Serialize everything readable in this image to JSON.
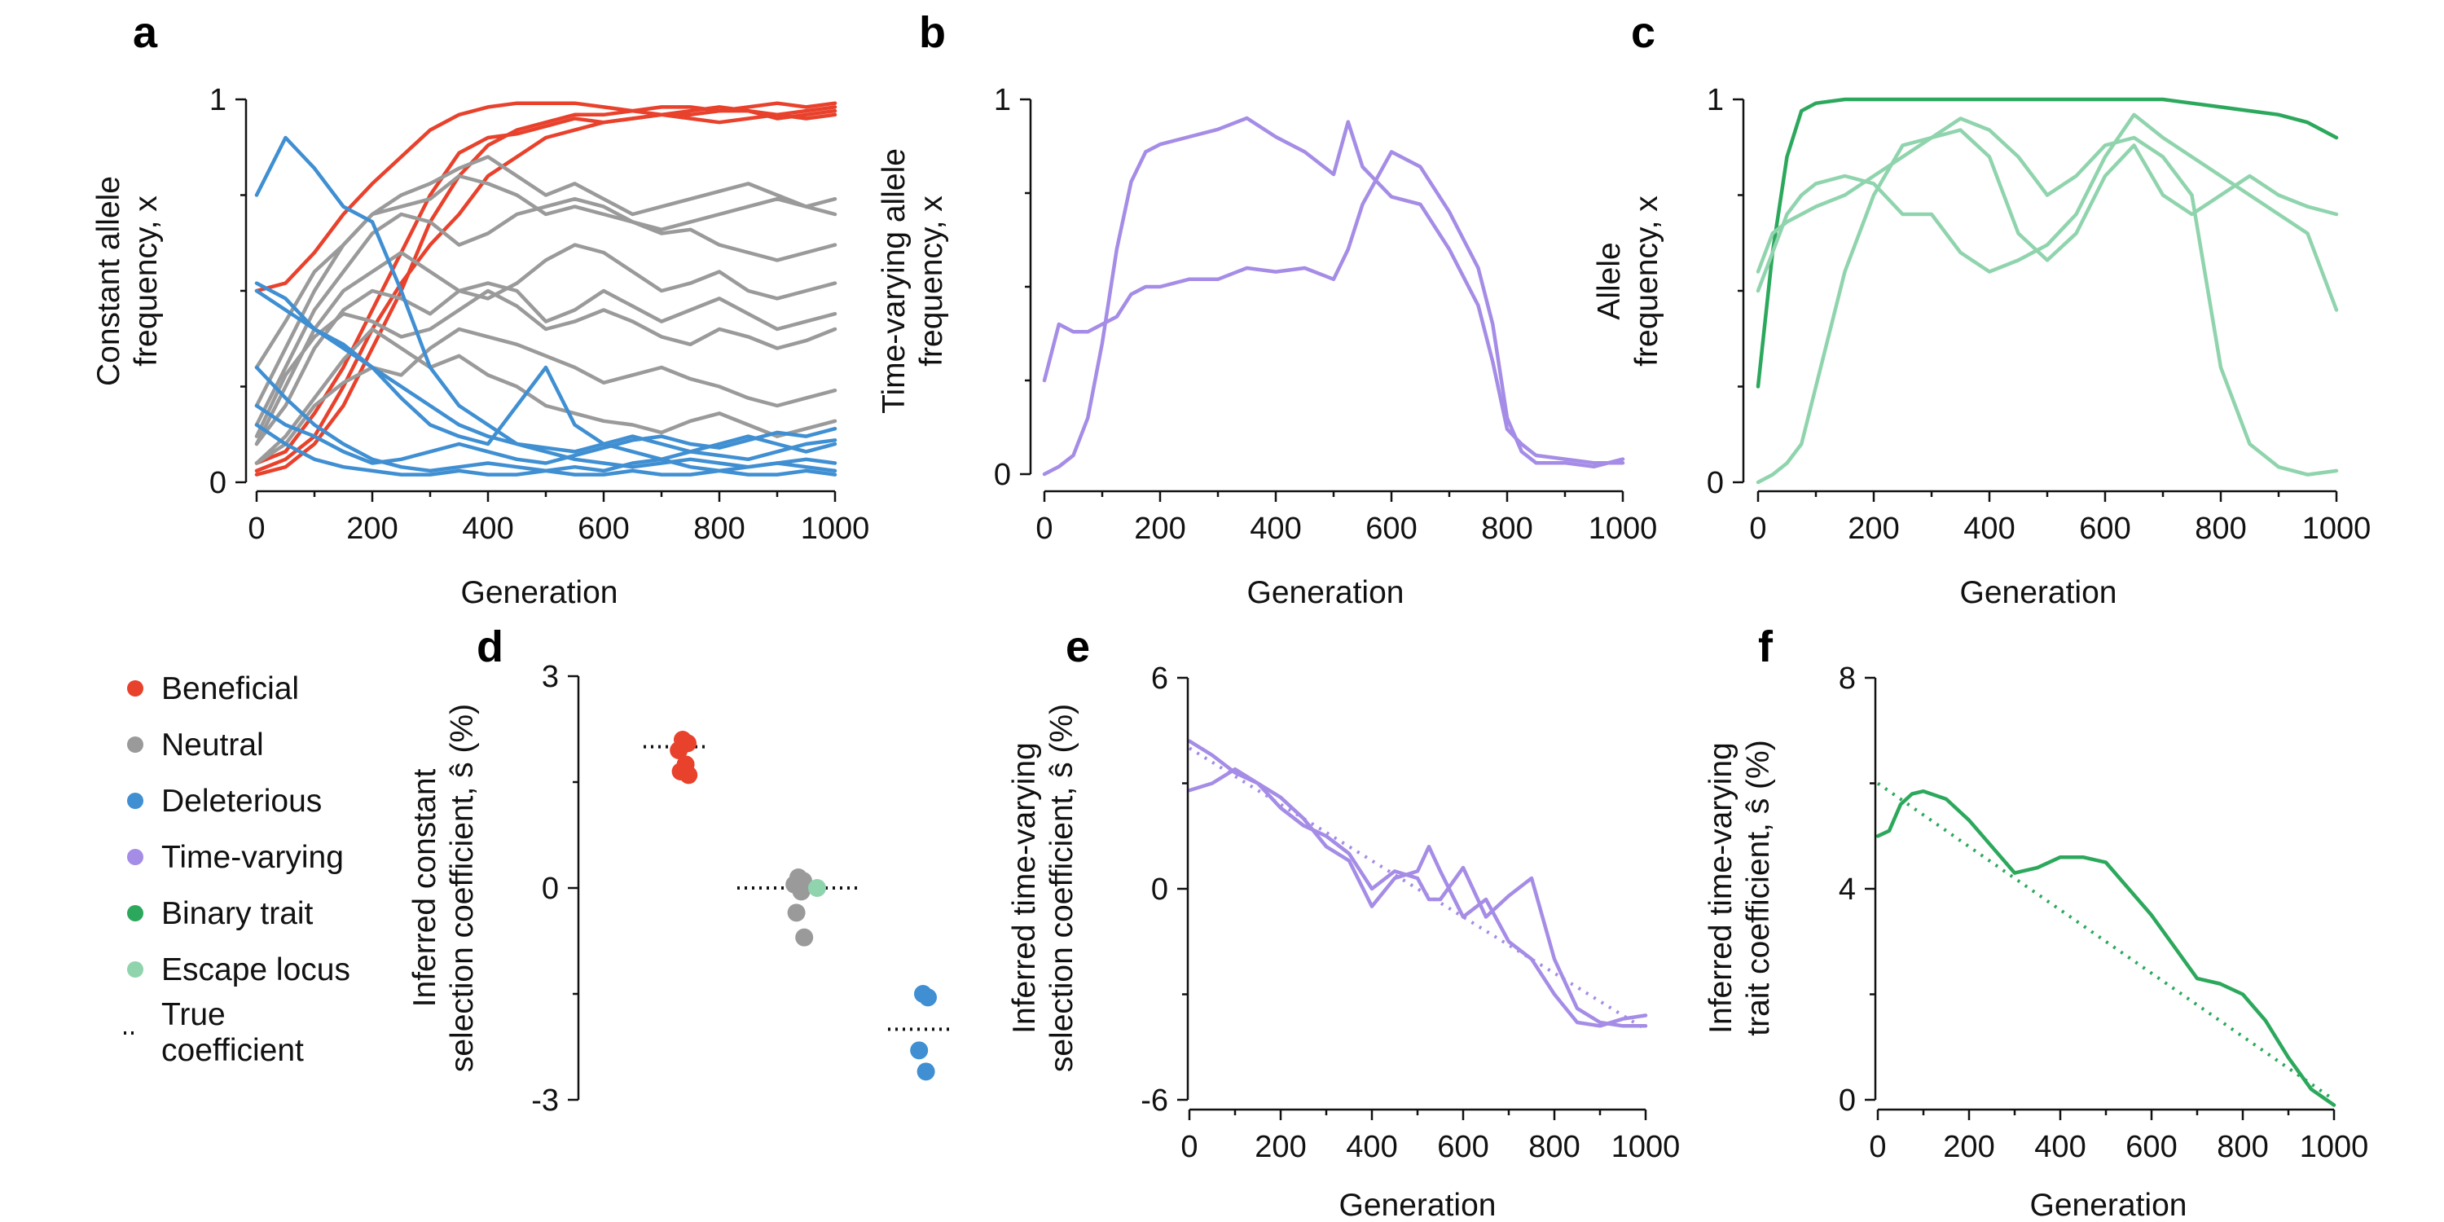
{
  "colors": {
    "beneficial": "#e8412c",
    "neutral": "#9a9a9a",
    "deleterious": "#3f8fd2",
    "time_varying": "#a58ce6",
    "binary_trait": "#2ca85c",
    "escape_locus": "#8fd4ad"
  },
  "legend": {
    "items": [
      {
        "label": "Beneficial",
        "color": "#e8412c",
        "marker": "dot"
      },
      {
        "label": "Neutral",
        "color": "#9a9a9a",
        "marker": "dot"
      },
      {
        "label": "Deleterious",
        "color": "#3f8fd2",
        "marker": "dot"
      },
      {
        "label": "Time-varying",
        "color": "#a58ce6",
        "marker": "dot"
      },
      {
        "label": "Binary trait",
        "color": "#2ca85c",
        "marker": "dot"
      },
      {
        "label": "Escape locus",
        "color": "#8fd4ad",
        "marker": "dot"
      }
    ],
    "true_line1": "True",
    "true_line2": "coefficient"
  },
  "chart_data": [
    {
      "panel": "a",
      "type": "line",
      "ylabel_line1": "Constant allele",
      "ylabel_line2": "frequency, x",
      "xlabel": "Generation",
      "xlim": [
        0,
        1000
      ],
      "ylim": [
        0,
        1
      ],
      "xticks": [
        0,
        200,
        400,
        600,
        800,
        1000
      ],
      "yticks": [
        0,
        1
      ],
      "x": [
        0,
        50,
        100,
        150,
        200,
        250,
        300,
        350,
        400,
        450,
        500,
        550,
        600,
        650,
        700,
        750,
        800,
        850,
        900,
        950,
        1000
      ],
      "series": [
        {
          "group": "beneficial",
          "values": [
            0.5,
            0.52,
            0.6,
            0.7,
            0.78,
            0.85,
            0.92,
            0.96,
            0.98,
            0.99,
            0.99,
            0.99,
            0.98,
            0.97,
            0.96,
            0.97,
            0.98,
            0.97,
            0.95,
            0.96,
            0.97
          ]
        },
        {
          "group": "beneficial",
          "values": [
            0.03,
            0.06,
            0.12,
            0.25,
            0.4,
            0.52,
            0.62,
            0.7,
            0.8,
            0.85,
            0.9,
            0.92,
            0.94,
            0.95,
            0.96,
            0.96,
            0.97,
            0.97,
            0.96,
            0.97,
            0.98
          ]
        },
        {
          "group": "beneficial",
          "values": [
            0.02,
            0.04,
            0.1,
            0.2,
            0.35,
            0.5,
            0.68,
            0.8,
            0.88,
            0.92,
            0.94,
            0.96,
            0.96,
            0.97,
            0.98,
            0.98,
            0.97,
            0.98,
            0.99,
            0.98,
            0.99
          ]
        },
        {
          "group": "beneficial",
          "values": [
            0.05,
            0.08,
            0.18,
            0.3,
            0.45,
            0.6,
            0.75,
            0.86,
            0.9,
            0.91,
            0.93,
            0.95,
            0.94,
            0.95,
            0.96,
            0.95,
            0.94,
            0.95,
            0.96,
            0.95,
            0.96
          ]
        },
        {
          "group": "neutral",
          "values": [
            0.3,
            0.42,
            0.55,
            0.62,
            0.7,
            0.72,
            0.74,
            0.8,
            0.78,
            0.75,
            0.7,
            0.72,
            0.7,
            0.68,
            0.65,
            0.66,
            0.62,
            0.6,
            0.58,
            0.6,
            0.62
          ]
        },
        {
          "group": "neutral",
          "values": [
            0.1,
            0.2,
            0.35,
            0.45,
            0.5,
            0.48,
            0.44,
            0.5,
            0.52,
            0.5,
            0.42,
            0.45,
            0.5,
            0.46,
            0.42,
            0.45,
            0.48,
            0.44,
            0.4,
            0.42,
            0.44
          ]
        },
        {
          "group": "neutral",
          "values": [
            0.05,
            0.1,
            0.2,
            0.26,
            0.3,
            0.28,
            0.35,
            0.4,
            0.38,
            0.36,
            0.33,
            0.3,
            0.26,
            0.28,
            0.3,
            0.27,
            0.25,
            0.22,
            0.2,
            0.22,
            0.24
          ]
        },
        {
          "group": "neutral",
          "values": [
            0.2,
            0.35,
            0.5,
            0.62,
            0.7,
            0.75,
            0.78,
            0.82,
            0.85,
            0.8,
            0.75,
            0.78,
            0.74,
            0.7,
            0.72,
            0.74,
            0.76,
            0.78,
            0.75,
            0.72,
            0.74
          ]
        },
        {
          "group": "neutral",
          "values": [
            0.1,
            0.25,
            0.4,
            0.5,
            0.55,
            0.6,
            0.55,
            0.5,
            0.48,
            0.52,
            0.58,
            0.62,
            0.6,
            0.55,
            0.5,
            0.52,
            0.55,
            0.5,
            0.48,
            0.5,
            0.52
          ]
        },
        {
          "group": "neutral",
          "values": [
            0.05,
            0.12,
            0.22,
            0.32,
            0.4,
            0.35,
            0.3,
            0.33,
            0.28,
            0.25,
            0.2,
            0.18,
            0.16,
            0.15,
            0.13,
            0.16,
            0.18,
            0.15,
            0.12,
            0.14,
            0.16
          ]
        },
        {
          "group": "neutral",
          "values": [
            0.15,
            0.3,
            0.45,
            0.55,
            0.65,
            0.7,
            0.68,
            0.62,
            0.65,
            0.7,
            0.72,
            0.74,
            0.72,
            0.68,
            0.66,
            0.68,
            0.7,
            0.72,
            0.74,
            0.72,
            0.7
          ]
        },
        {
          "group": "neutral",
          "values": [
            0.12,
            0.28,
            0.38,
            0.44,
            0.42,
            0.38,
            0.4,
            0.45,
            0.5,
            0.46,
            0.4,
            0.42,
            0.45,
            0.42,
            0.38,
            0.36,
            0.4,
            0.38,
            0.35,
            0.37,
            0.4
          ]
        },
        {
          "group": "deleterious",
          "values": [
            0.75,
            0.9,
            0.82,
            0.72,
            0.68,
            0.5,
            0.3,
            0.2,
            0.15,
            0.1,
            0.08,
            0.06,
            0.05,
            0.04,
            0.05,
            0.06,
            0.05,
            0.04,
            0.05,
            0.06,
            0.05
          ]
        },
        {
          "group": "deleterious",
          "values": [
            0.5,
            0.45,
            0.4,
            0.35,
            0.3,
            0.22,
            0.15,
            0.12,
            0.1,
            0.2,
            0.3,
            0.15,
            0.1,
            0.08,
            0.06,
            0.08,
            0.1,
            0.12,
            0.1,
            0.08,
            0.1
          ]
        },
        {
          "group": "deleterious",
          "values": [
            0.52,
            0.48,
            0.4,
            0.36,
            0.3,
            0.25,
            0.2,
            0.15,
            0.12,
            0.1,
            0.09,
            0.08,
            0.1,
            0.12,
            0.1,
            0.08,
            0.07,
            0.06,
            0.08,
            0.1,
            0.11
          ]
        },
        {
          "group": "deleterious",
          "values": [
            0.3,
            0.22,
            0.15,
            0.1,
            0.06,
            0.04,
            0.03,
            0.04,
            0.05,
            0.04,
            0.03,
            0.04,
            0.03,
            0.05,
            0.06,
            0.04,
            0.03,
            0.04,
            0.05,
            0.04,
            0.03
          ]
        },
        {
          "group": "deleterious",
          "values": [
            0.2,
            0.15,
            0.12,
            0.08,
            0.05,
            0.06,
            0.08,
            0.1,
            0.08,
            0.06,
            0.05,
            0.07,
            0.09,
            0.11,
            0.12,
            0.1,
            0.09,
            0.11,
            0.13,
            0.12,
            0.14
          ]
        },
        {
          "group": "deleterious",
          "values": [
            0.15,
            0.1,
            0.06,
            0.04,
            0.03,
            0.02,
            0.02,
            0.03,
            0.02,
            0.02,
            0.03,
            0.02,
            0.02,
            0.03,
            0.02,
            0.02,
            0.03,
            0.02,
            0.02,
            0.03,
            0.02
          ]
        }
      ]
    },
    {
      "panel": "b",
      "type": "line",
      "ylabel_line1": "Time-varying allele",
      "ylabel_line2": "frequency, x",
      "xlabel": "Generation",
      "xlim": [
        0,
        1000
      ],
      "ylim": [
        0,
        1
      ],
      "xticks": [
        0,
        200,
        400,
        600,
        800,
        1000
      ],
      "yticks": [
        0,
        1
      ],
      "x": [
        0,
        25,
        50,
        75,
        100,
        125,
        150,
        175,
        200,
        250,
        300,
        350,
        400,
        450,
        500,
        525,
        550,
        600,
        650,
        700,
        750,
        775,
        800,
        825,
        850,
        900,
        950,
        1000
      ],
      "series": [
        {
          "group": "time_varying",
          "values": [
            0.0,
            0.02,
            0.05,
            0.15,
            0.35,
            0.6,
            0.78,
            0.86,
            0.88,
            0.9,
            0.92,
            0.95,
            0.9,
            0.86,
            0.8,
            0.94,
            0.82,
            0.74,
            0.72,
            0.6,
            0.45,
            0.3,
            0.12,
            0.08,
            0.05,
            0.04,
            0.03,
            0.03
          ]
        },
        {
          "group": "time_varying",
          "values": [
            0.25,
            0.4,
            0.38,
            0.38,
            0.4,
            0.42,
            0.48,
            0.5,
            0.5,
            0.52,
            0.52,
            0.55,
            0.54,
            0.55,
            0.52,
            0.6,
            0.72,
            0.86,
            0.82,
            0.7,
            0.55,
            0.4,
            0.15,
            0.06,
            0.03,
            0.03,
            0.02,
            0.04
          ]
        }
      ]
    },
    {
      "panel": "c",
      "type": "line",
      "ylabel_line1": "Allele",
      "ylabel_line2": "frequency, x",
      "xlabel": "Generation",
      "xlim": [
        0,
        1000
      ],
      "ylim": [
        0,
        1
      ],
      "xticks": [
        0,
        200,
        400,
        600,
        800,
        1000
      ],
      "yticks": [
        0,
        1
      ],
      "x": [
        0,
        25,
        50,
        75,
        100,
        150,
        200,
        250,
        300,
        350,
        400,
        450,
        500,
        550,
        600,
        650,
        700,
        750,
        800,
        850,
        900,
        950,
        1000
      ],
      "series": [
        {
          "group": "binary_trait",
          "values": [
            0.25,
            0.6,
            0.85,
            0.97,
            0.99,
            1.0,
            1.0,
            1.0,
            1.0,
            1.0,
            1.0,
            1.0,
            1.0,
            1.0,
            1.0,
            1.0,
            1.0,
            0.99,
            0.98,
            0.97,
            0.96,
            0.94,
            0.9
          ]
        },
        {
          "group": "escape_locus",
          "values": [
            0.0,
            0.02,
            0.05,
            0.1,
            0.25,
            0.55,
            0.75,
            0.88,
            0.9,
            0.95,
            0.92,
            0.85,
            0.75,
            0.8,
            0.88,
            0.9,
            0.85,
            0.75,
            0.3,
            0.1,
            0.04,
            0.02,
            0.03
          ]
        },
        {
          "group": "escape_locus",
          "values": [
            0.5,
            0.6,
            0.7,
            0.75,
            0.78,
            0.8,
            0.78,
            0.7,
            0.7,
            0.6,
            0.55,
            0.58,
            0.62,
            0.7,
            0.85,
            0.96,
            0.9,
            0.85,
            0.8,
            0.75,
            0.7,
            0.65,
            0.45
          ]
        },
        {
          "group": "escape_locus",
          "values": [
            0.55,
            0.65,
            0.68,
            0.7,
            0.72,
            0.75,
            0.8,
            0.85,
            0.9,
            0.92,
            0.85,
            0.65,
            0.58,
            0.65,
            0.8,
            0.88,
            0.75,
            0.7,
            0.75,
            0.8,
            0.75,
            0.72,
            0.7
          ]
        }
      ]
    },
    {
      "panel": "d",
      "type": "scatter",
      "ylabel_line1": "Inferred constant",
      "ylabel_line2": "selection coefficient, ŝ (%)",
      "ylim": [
        -3,
        3
      ],
      "yticks": [
        3,
        0,
        -3
      ],
      "groups": [
        {
          "group": "beneficial",
          "true": 2,
          "values": [
            2.1,
            2.05,
            1.95,
            1.75,
            1.65,
            1.6
          ]
        },
        {
          "group": "neutral",
          "true": 0,
          "values": [
            0.15,
            0.1,
            0.05,
            -0.05,
            -0.35,
            -0.7
          ]
        },
        {
          "group": "escape_locus",
          "true": 0,
          "values": [
            0.0
          ]
        },
        {
          "group": "deleterious",
          "true": -2,
          "values": [
            -1.5,
            -1.55,
            -2.3,
            -2.6
          ]
        }
      ]
    },
    {
      "panel": "e",
      "type": "line",
      "ylabel_line1": "Inferred time-varying",
      "ylabel_line2": "selection coefficient, ŝ (%)",
      "xlabel": "Generation",
      "xlim": [
        0,
        1000
      ],
      "ylim": [
        -6,
        6
      ],
      "xticks": [
        0,
        200,
        400,
        600,
        800,
        1000
      ],
      "yticks": [
        6,
        0,
        -6
      ],
      "x": [
        0,
        50,
        100,
        150,
        200,
        250,
        300,
        350,
        400,
        450,
        500,
        525,
        550,
        600,
        650,
        700,
        750,
        800,
        850,
        900,
        950,
        1000
      ],
      "true_line": {
        "x": [
          0,
          1000
        ],
        "y": [
          4,
          -4
        ]
      },
      "series": [
        {
          "group": "time_varying",
          "values": [
            4.2,
            3.8,
            3.3,
            3.0,
            2.6,
            2.0,
            1.2,
            0.8,
            -0.5,
            0.3,
            0.5,
            1.2,
            0.5,
            -0.8,
            -0.3,
            -1.5,
            -2.0,
            -3.0,
            -3.8,
            -3.9,
            -3.7,
            -3.6
          ]
        },
        {
          "group": "time_varying",
          "values": [
            2.8,
            3.0,
            3.4,
            3.0,
            2.3,
            1.8,
            1.5,
            1.0,
            0.0,
            0.5,
            0.3,
            -0.3,
            -0.3,
            0.6,
            -0.8,
            -0.2,
            0.3,
            -2.0,
            -3.4,
            -3.8,
            -3.9,
            -3.9
          ]
        }
      ]
    },
    {
      "panel": "f",
      "type": "line",
      "ylabel_line1": "Inferred time-varying",
      "ylabel_line2": "trait coefficient, ŝ (%)",
      "xlabel": "Generation",
      "xlim": [
        0,
        1000
      ],
      "ylim": [
        0,
        8
      ],
      "xticks": [
        0,
        200,
        400,
        600,
        800,
        1000
      ],
      "yticks": [
        8,
        4,
        0
      ],
      "x": [
        0,
        25,
        50,
        75,
        100,
        150,
        200,
        250,
        300,
        350,
        400,
        450,
        500,
        550,
        600,
        650,
        700,
        750,
        800,
        850,
        900,
        950,
        1000
      ],
      "true_line": {
        "x": [
          0,
          1000
        ],
        "y": [
          6,
          0
        ]
      },
      "series": [
        {
          "group": "binary_trait",
          "values": [
            5.0,
            5.1,
            5.6,
            5.8,
            5.85,
            5.7,
            5.3,
            4.8,
            4.3,
            4.4,
            4.6,
            4.6,
            4.5,
            4.0,
            3.5,
            2.9,
            2.3,
            2.2,
            2.0,
            1.5,
            0.8,
            0.2,
            -0.1
          ]
        }
      ]
    }
  ]
}
